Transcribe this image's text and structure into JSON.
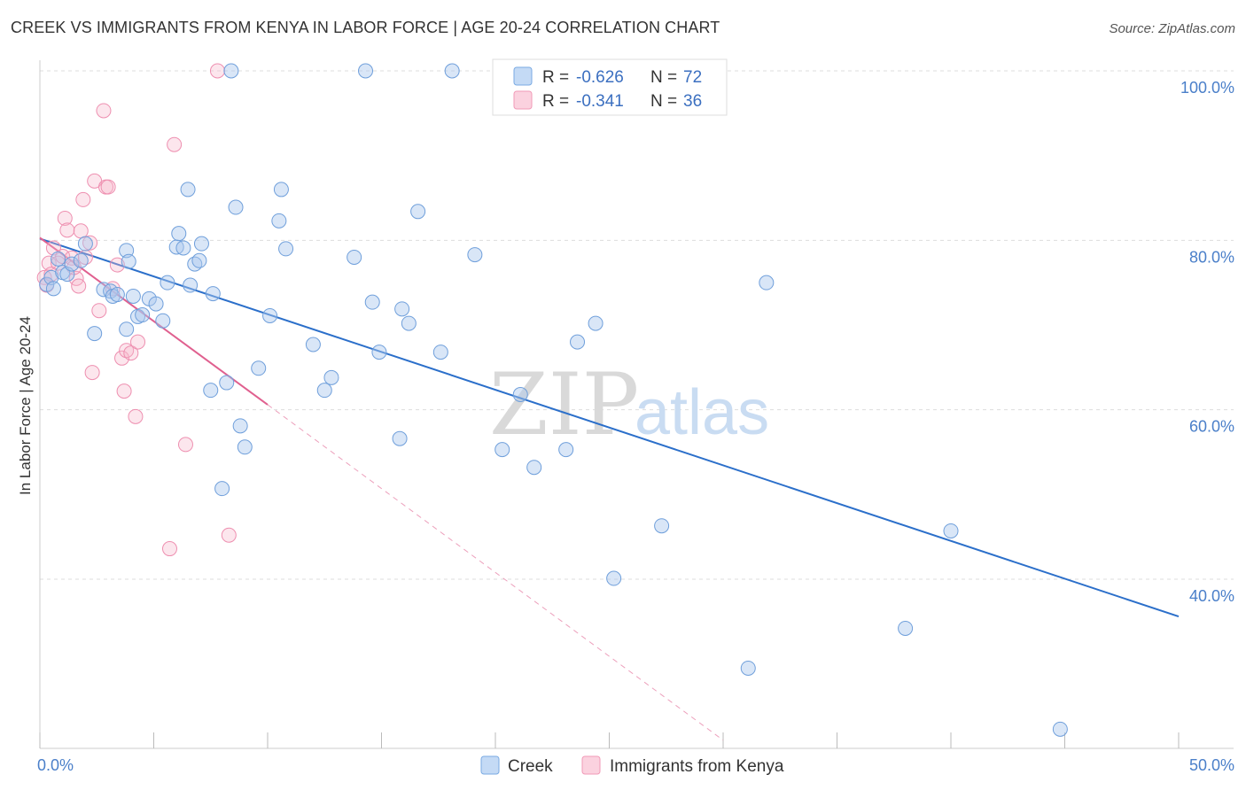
{
  "title": "CREEK VS IMMIGRANTS FROM KENYA IN LABOR FORCE | AGE 20-24 CORRELATION CHART",
  "source": "Source: ZipAtlas.com",
  "watermark": {
    "zip": "ZIP",
    "atlas": "atlas"
  },
  "legend_top": [
    {
      "r_label": "R = ",
      "r_value": "-0.626",
      "n_label": "N = ",
      "n_value": "72",
      "color": "#aac8ee"
    },
    {
      "r_label": "R = ",
      "r_value": "-0.341",
      "n_label": "N = ",
      "n_value": "36",
      "color": "#f5b8cb"
    }
  ],
  "colors": {
    "creek": "#7aaae3",
    "creek_line": "#2b6fca",
    "kenya": "#f19ab7",
    "kenya_line": "#e0608f",
    "grid": "#dddddd"
  },
  "chart_data": {
    "type": "scatter",
    "xlabel": "",
    "ylabel": "In Labor Force | Age 20-24",
    "xlim": [
      0,
      50
    ],
    "ylim": [
      20,
      102
    ],
    "x_tick_labels": [
      {
        "x": 0,
        "label": "0.0%"
      },
      {
        "x": 50,
        "label": "50.0%"
      }
    ],
    "y_tick_labels": [
      {
        "y": 100,
        "label": "100.0%"
      },
      {
        "y": 80,
        "label": "80.0%"
      },
      {
        "y": 60,
        "label": "60.0%"
      },
      {
        "y": 40,
        "label": "40.0%"
      }
    ],
    "x_minor_ticks": [
      0,
      5,
      10,
      15,
      20,
      25,
      30,
      35,
      40,
      45,
      50
    ],
    "grid": true,
    "legend_position": "bottom-center",
    "series": [
      {
        "name": "Creek",
        "color": "#7aaae3",
        "trend": {
          "x": [
            0,
            50
          ],
          "y": [
            80.2,
            35.6
          ]
        },
        "points": [
          [
            0.3,
            74.8
          ],
          [
            0.5,
            75.6
          ],
          [
            0.6,
            74.3
          ],
          [
            0.8,
            77.8
          ],
          [
            1.0,
            76.2
          ],
          [
            1.2,
            76.0
          ],
          [
            1.4,
            77.2
          ],
          [
            1.8,
            77.6
          ],
          [
            2.0,
            79.6
          ],
          [
            2.4,
            69.0
          ],
          [
            2.8,
            74.2
          ],
          [
            3.1,
            74.0
          ],
          [
            3.2,
            73.4
          ],
          [
            3.4,
            73.6
          ],
          [
            3.8,
            69.5
          ],
          [
            3.8,
            78.8
          ],
          [
            3.9,
            77.5
          ],
          [
            4.1,
            73.4
          ],
          [
            4.3,
            71.0
          ],
          [
            4.5,
            71.2
          ],
          [
            4.8,
            73.1
          ],
          [
            5.1,
            72.5
          ],
          [
            5.4,
            70.5
          ],
          [
            5.6,
            75.0
          ],
          [
            6.0,
            79.2
          ],
          [
            6.1,
            80.8
          ],
          [
            6.3,
            79.1
          ],
          [
            6.5,
            86.0
          ],
          [
            6.6,
            74.7
          ],
          [
            6.8,
            77.2
          ],
          [
            7.0,
            77.6
          ],
          [
            7.1,
            79.6
          ],
          [
            7.5,
            62.3
          ],
          [
            7.6,
            73.7
          ],
          [
            8.0,
            50.7
          ],
          [
            8.2,
            63.2
          ],
          [
            8.4,
            100.0
          ],
          [
            8.6,
            83.9
          ],
          [
            8.8,
            58.1
          ],
          [
            9.0,
            55.6
          ],
          [
            9.6,
            64.9
          ],
          [
            10.1,
            71.1
          ],
          [
            10.5,
            82.3
          ],
          [
            10.6,
            86.0
          ],
          [
            10.8,
            79.0
          ],
          [
            12.0,
            67.7
          ],
          [
            12.5,
            62.3
          ],
          [
            12.8,
            63.8
          ],
          [
            13.8,
            78.0
          ],
          [
            14.3,
            100.0
          ],
          [
            14.6,
            72.7
          ],
          [
            14.9,
            66.8
          ],
          [
            15.8,
            56.6
          ],
          [
            15.9,
            71.9
          ],
          [
            16.2,
            70.2
          ],
          [
            16.6,
            83.4
          ],
          [
            17.6,
            66.8
          ],
          [
            18.1,
            100.0
          ],
          [
            19.1,
            78.3
          ],
          [
            20.3,
            55.3
          ],
          [
            21.1,
            61.8
          ],
          [
            21.7,
            53.2
          ],
          [
            23.1,
            55.3
          ],
          [
            23.6,
            68.0
          ],
          [
            24.4,
            70.2
          ],
          [
            25.2,
            40.1
          ],
          [
            27.3,
            46.3
          ],
          [
            31.1,
            29.5
          ],
          [
            31.9,
            75.0
          ],
          [
            38.0,
            34.2
          ],
          [
            40.0,
            45.7
          ],
          [
            44.8,
            22.3
          ]
        ]
      },
      {
        "name": "Immigrants from Kenya",
        "color": "#f19ab7",
        "trend": {
          "x": [
            0,
            10
          ],
          "y": [
            80.3,
            60.6
          ]
        },
        "trend_ext": {
          "x": [
            10,
            30
          ],
          "y": [
            60.6,
            21.0
          ]
        },
        "points": [
          [
            0.2,
            75.6
          ],
          [
            0.3,
            74.7
          ],
          [
            0.4,
            77.3
          ],
          [
            0.6,
            79.1
          ],
          [
            0.8,
            77.3
          ],
          [
            1.0,
            78.1
          ],
          [
            1.1,
            82.6
          ],
          [
            1.2,
            81.2
          ],
          [
            1.4,
            77.9
          ],
          [
            1.6,
            75.5
          ],
          [
            1.7,
            74.6
          ],
          [
            1.8,
            81.1
          ],
          [
            1.9,
            84.8
          ],
          [
            2.0,
            78.0
          ],
          [
            2.2,
            79.7
          ],
          [
            2.3,
            64.4
          ],
          [
            2.4,
            87.0
          ],
          [
            2.6,
            71.7
          ],
          [
            2.8,
            95.3
          ],
          [
            2.9,
            86.3
          ],
          [
            3.0,
            86.3
          ],
          [
            3.2,
            74.3
          ],
          [
            3.4,
            77.1
          ],
          [
            3.6,
            66.1
          ],
          [
            3.7,
            62.2
          ],
          [
            3.8,
            67.0
          ],
          [
            4.0,
            66.7
          ],
          [
            4.2,
            59.2
          ],
          [
            4.3,
            68.0
          ],
          [
            5.7,
            43.6
          ],
          [
            5.9,
            91.3
          ],
          [
            6.4,
            55.9
          ],
          [
            7.8,
            100.0
          ],
          [
            8.3,
            45.2
          ],
          [
            0.5,
            76.0
          ],
          [
            1.5,
            76.8
          ]
        ]
      }
    ]
  }
}
